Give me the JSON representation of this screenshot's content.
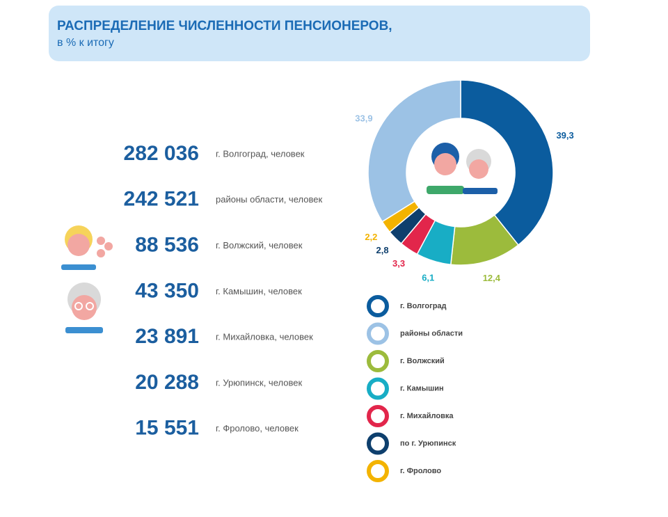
{
  "header": {
    "title": "РАСПРЕДЕЛЕНИЕ ЧИСЛЕННОСТИ ПЕНСИОНЕРОВ,",
    "subtitle": "в % к итогу"
  },
  "stats": [
    {
      "value": "282 036",
      "label": "г. Волгоград, человек"
    },
    {
      "value": "242 521",
      "label": "районы области, человек"
    },
    {
      "value": "88 536",
      "label": "г. Волжский, человек"
    },
    {
      "value": "43 350",
      "label": "г. Камышин, человек"
    },
    {
      "value": "23 891",
      "label": "г. Михайловка,  человек"
    },
    {
      "value": "20 288",
      "label": "г. Урюпинск, человек"
    },
    {
      "value": "15 551",
      "label": "г. Фролово, человек"
    }
  ],
  "chart_data": {
    "type": "donut",
    "categories": [
      "г. Волгоград",
      "районы области",
      "г. Волжский",
      "г. Камышин",
      "г. Михайловка",
      "по г. Урюпинск",
      "г. Фролово"
    ],
    "values": [
      39.3,
      33.9,
      12.4,
      6.1,
      3.3,
      2.8,
      2.2
    ],
    "value_labels": [
      "39,3",
      "33,9",
      "12,4",
      "6,1",
      "3,3",
      "2,8",
      "2,2"
    ],
    "colors": [
      "#0b5c9e",
      "#9cc2e5",
      "#9cbb3c",
      "#18adc5",
      "#e2264b",
      "#0e3f6d",
      "#f3b300"
    ]
  }
}
